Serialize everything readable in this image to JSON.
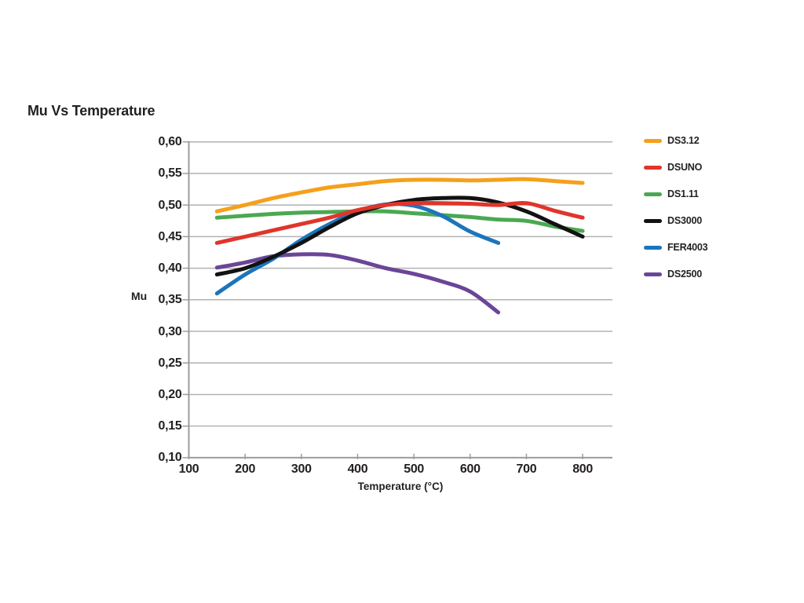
{
  "page_title": "Mu Vs Temperature",
  "chart_data": {
    "type": "line",
    "title": "Mu Vs Temperature",
    "xlabel": "Temperature (°C)",
    "ylabel": "Mu",
    "xlim": [
      100,
      850
    ],
    "ylim": [
      0.1,
      0.6
    ],
    "grid": "horizontal",
    "legend_position": "right",
    "decimal_separator": ",",
    "x_ticks": [
      100,
      200,
      300,
      400,
      500,
      600,
      700,
      800
    ],
    "x_tick_labels": [
      "100",
      "200",
      "300",
      "400",
      "500",
      "600",
      "700",
      "800"
    ],
    "y_ticks": [
      0.6,
      0.55,
      0.5,
      0.45,
      0.4,
      0.35,
      0.3,
      0.25,
      0.2,
      0.15,
      0.1
    ],
    "y_tick_labels": [
      "0,60",
      "0,55",
      "0,50",
      "0,45",
      "0,40",
      "0,35",
      "0,30",
      "0,25",
      "0,20",
      "0,15",
      "0,10"
    ],
    "colors": {
      "grid": "#b2b2b2",
      "axis": "#9b9da0",
      "text": "#231f20"
    },
    "series": [
      {
        "name": "DS3.12",
        "color": "#f5a01c",
        "x": [
          150,
          200,
          250,
          300,
          350,
          400,
          450,
          500,
          550,
          600,
          650,
          700,
          750,
          800
        ],
        "y": [
          0.49,
          0.5,
          0.511,
          0.52,
          0.528,
          0.533,
          0.538,
          0.54,
          0.54,
          0.539,
          0.54,
          0.541,
          0.538,
          0.535
        ]
      },
      {
        "name": "DSUNO",
        "color": "#e0352b",
        "x": [
          150,
          200,
          250,
          300,
          350,
          400,
          450,
          500,
          550,
          600,
          650,
          700,
          750,
          800
        ],
        "y": [
          0.44,
          0.45,
          0.46,
          0.47,
          0.48,
          0.492,
          0.5,
          0.503,
          0.503,
          0.502,
          0.5,
          0.503,
          0.491,
          0.48
        ]
      },
      {
        "name": "DS1.11",
        "color": "#4ba852",
        "x": [
          150,
          200,
          250,
          300,
          350,
          400,
          450,
          500,
          550,
          600,
          650,
          700,
          750,
          800
        ],
        "y": [
          0.48,
          0.483,
          0.486,
          0.488,
          0.489,
          0.49,
          0.49,
          0.487,
          0.484,
          0.481,
          0.477,
          0.475,
          0.466,
          0.459
        ]
      },
      {
        "name": "DS3000",
        "color": "#121212",
        "x": [
          150,
          200,
          250,
          300,
          350,
          400,
          450,
          500,
          550,
          600,
          650,
          700,
          750,
          800
        ],
        "y": [
          0.39,
          0.4,
          0.418,
          0.44,
          0.465,
          0.487,
          0.5,
          0.508,
          0.511,
          0.511,
          0.504,
          0.49,
          0.47,
          0.45
        ]
      },
      {
        "name": "FER4003",
        "color": "#1c75bc",
        "x": [
          150,
          200,
          250,
          300,
          350,
          400,
          450,
          500,
          550,
          600,
          650
        ],
        "y": [
          0.36,
          0.39,
          0.415,
          0.445,
          0.47,
          0.49,
          0.501,
          0.499,
          0.483,
          0.458,
          0.44
        ]
      },
      {
        "name": "DS2500",
        "color": "#6b4598",
        "x": [
          150,
          200,
          250,
          300,
          350,
          400,
          450,
          500,
          550,
          600,
          650
        ],
        "y": [
          0.401,
          0.409,
          0.419,
          0.422,
          0.421,
          0.412,
          0.4,
          0.391,
          0.379,
          0.363,
          0.33
        ]
      }
    ]
  }
}
